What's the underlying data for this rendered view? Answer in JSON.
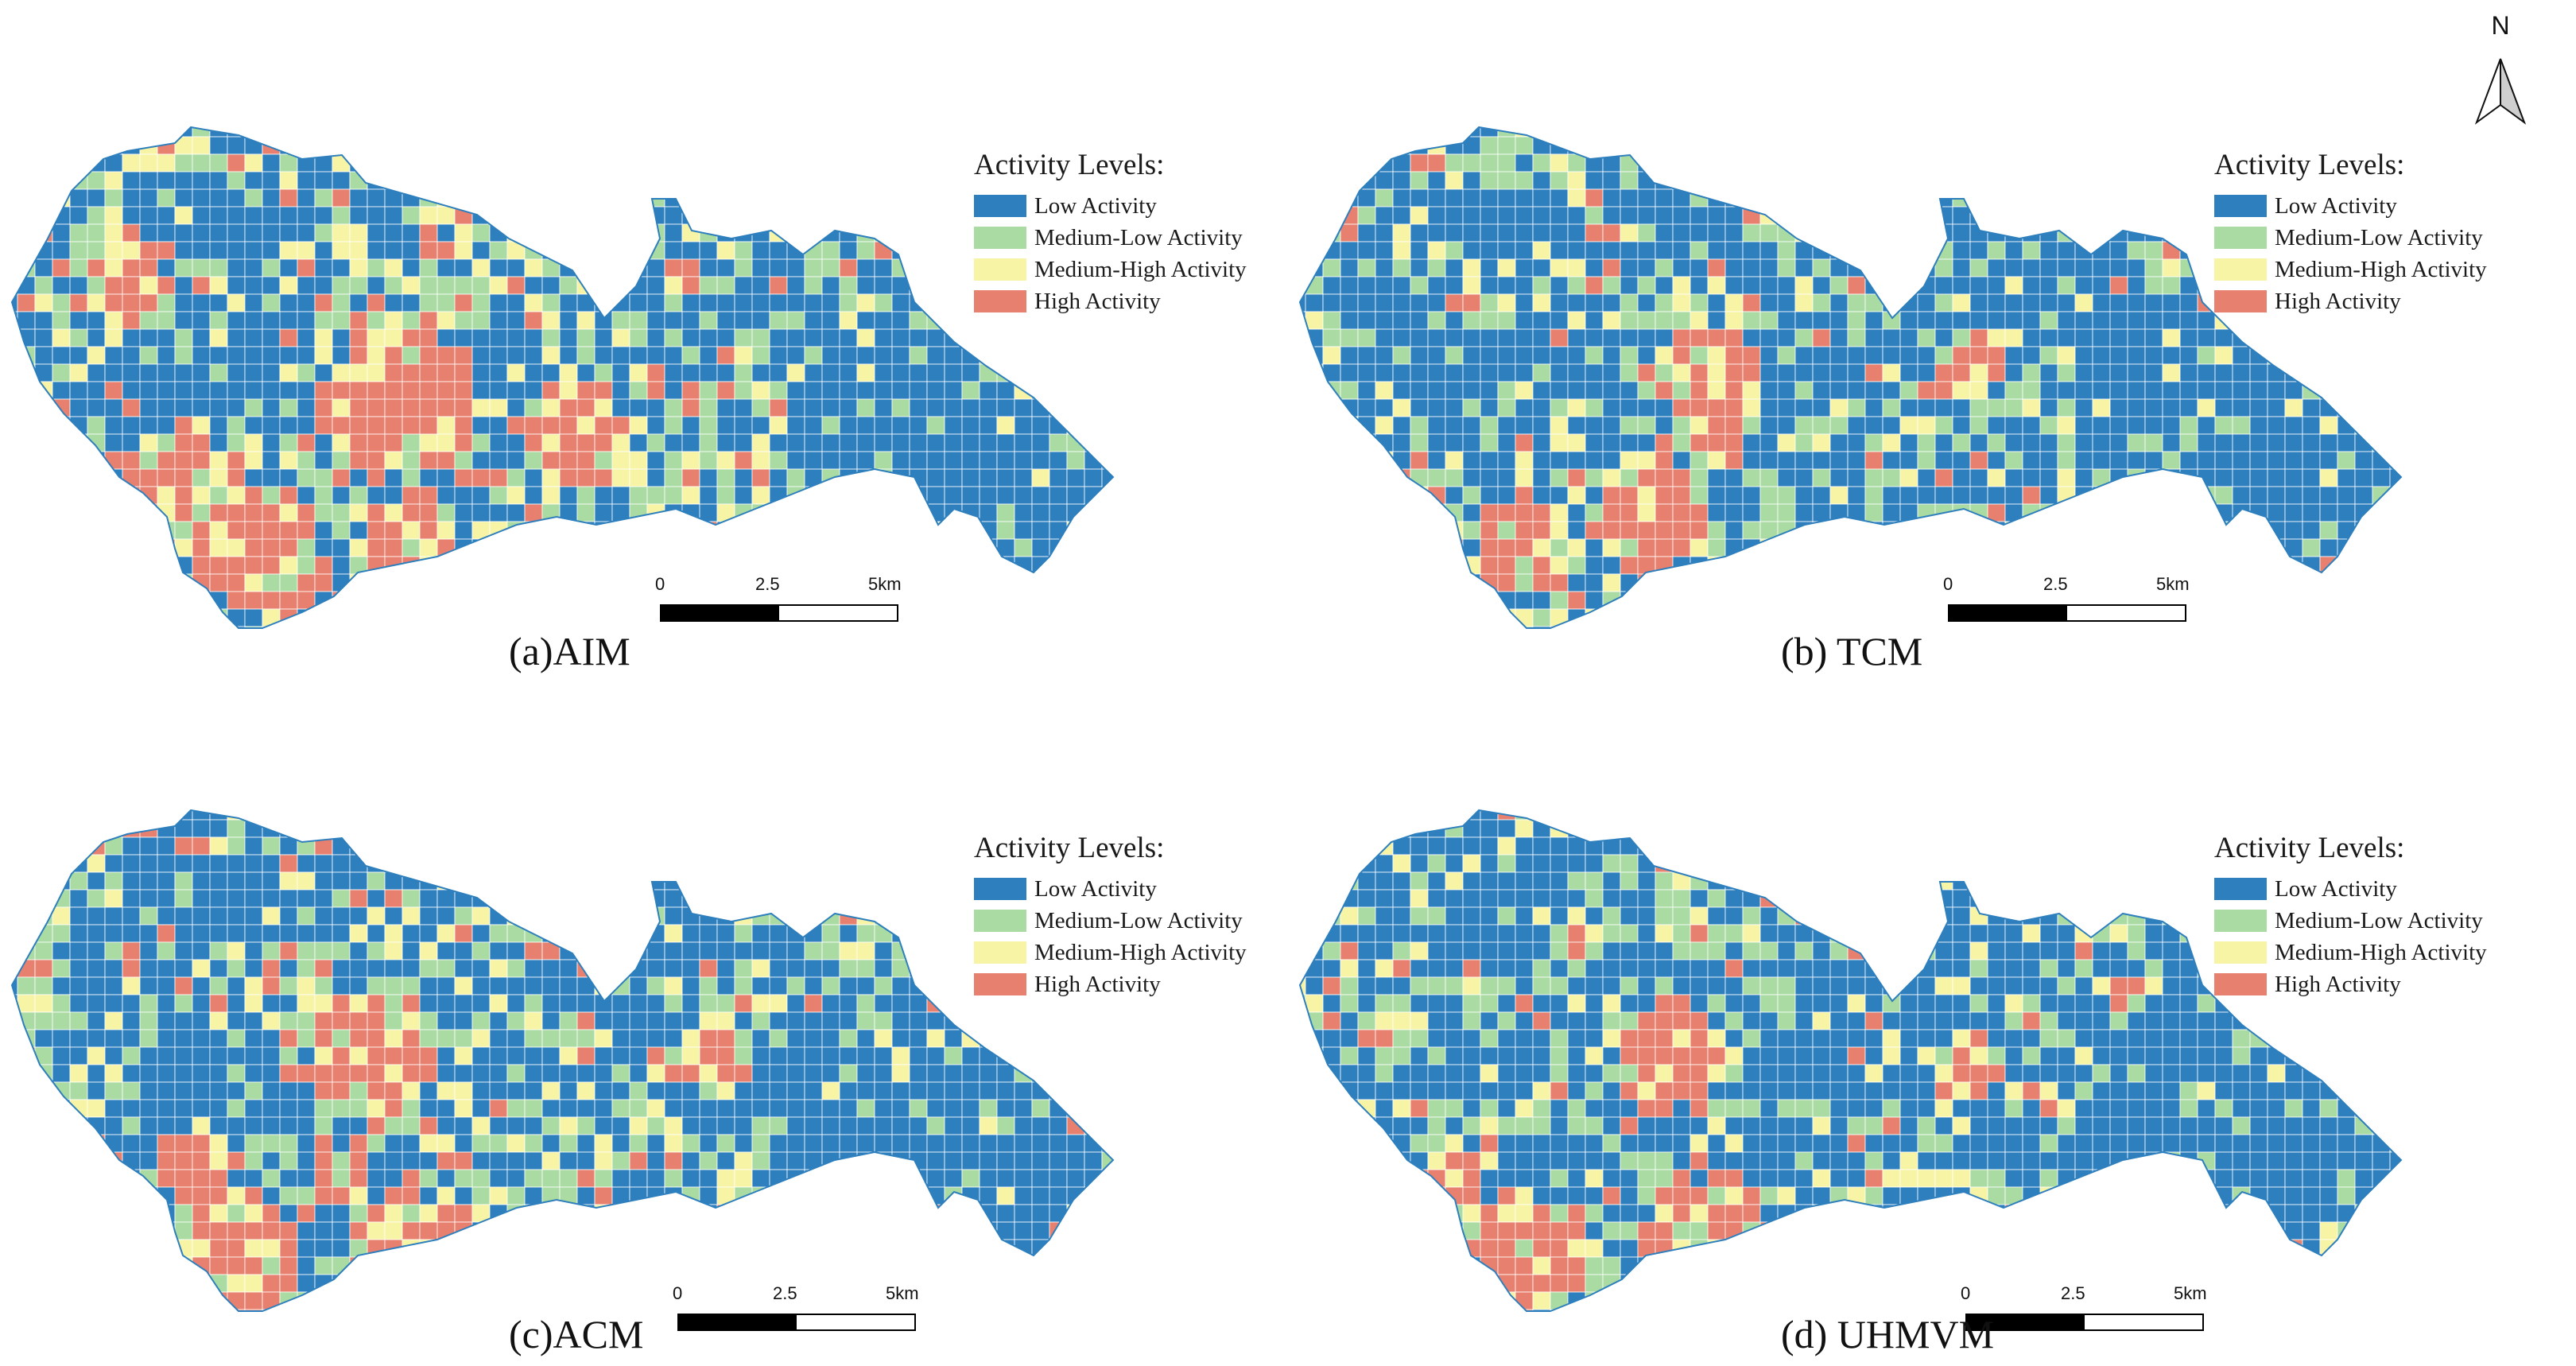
{
  "north_label": "N",
  "legend": {
    "title": "Activity Levels:",
    "items": [
      {
        "label": "Low Activity",
        "color": "#2e7fbd"
      },
      {
        "label": "Medium-Low Activity",
        "color": "#a9dba2"
      },
      {
        "label": "Medium-High Activity",
        "color": "#f7f4a5"
      },
      {
        "label": "High Activity",
        "color": "#e8806f"
      }
    ]
  },
  "scale": {
    "labels": [
      "0",
      "2.5",
      "5km"
    ]
  },
  "panels": [
    {
      "caption": "(a)AIM"
    },
    {
      "caption": "(b) TCM"
    },
    {
      "caption": "(c)ACM"
    },
    {
      "caption": "(d) UHMVM"
    }
  ]
}
